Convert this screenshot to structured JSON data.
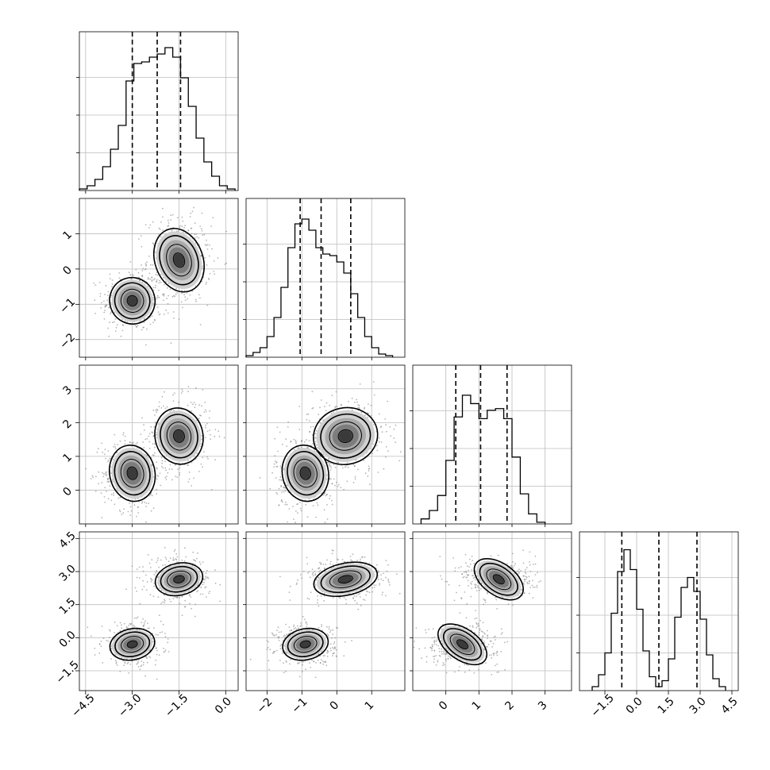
{
  "chart_data": {
    "type": "corner",
    "parameters": 4,
    "grid": true,
    "diag": [
      {
        "xlim": [
          -4.7,
          0.4
        ],
        "edges": [
          -4.7,
          -4.45,
          -4.2,
          -3.95,
          -3.7,
          -3.45,
          -3.2,
          -2.95,
          -2.7,
          -2.45,
          -2.2,
          -1.95,
          -1.7,
          -1.45,
          -1.2,
          -0.95,
          -0.7,
          -0.45,
          -0.2,
          0.05,
          0.3
        ],
        "values": [
          0.01,
          0.03,
          0.07,
          0.15,
          0.26,
          0.41,
          0.69,
          0.8,
          0.81,
          0.84,
          0.86,
          0.9,
          0.84,
          0.71,
          0.53,
          0.33,
          0.18,
          0.09,
          0.03,
          0.01
        ],
        "quantiles": [
          -3.0,
          -2.2,
          -1.45
        ],
        "ymax": 1.0
      },
      {
        "xlim": [
          -2.6,
          1.95
        ],
        "edges": [
          -2.6,
          -2.4,
          -2.2,
          -2.0,
          -1.8,
          -1.6,
          -1.4,
          -1.2,
          -1.0,
          -0.8,
          -0.6,
          -0.4,
          -0.2,
          0.0,
          0.2,
          0.4,
          0.6,
          0.8,
          1.0,
          1.2,
          1.4,
          1.6
        ],
        "values": [
          0.01,
          0.03,
          0.06,
          0.13,
          0.25,
          0.44,
          0.69,
          0.84,
          0.87,
          0.8,
          0.69,
          0.65,
          0.64,
          0.6,
          0.53,
          0.4,
          0.25,
          0.13,
          0.06,
          0.02,
          0.01
        ],
        "quantiles": [
          -1.05,
          -0.45,
          0.4
        ],
        "ymax": 1.0
      },
      {
        "xlim": [
          -1.0,
          3.8
        ],
        "edges": [
          -0.75,
          -0.5,
          -0.25,
          0.0,
          0.25,
          0.5,
          0.75,
          1.0,
          1.25,
          1.5,
          1.75,
          2.0,
          2.25,
          2.5,
          2.75,
          3.0
        ],
        "values": [
          0.03,
          0.08,
          0.17,
          0.38,
          0.64,
          0.77,
          0.72,
          0.63,
          0.68,
          0.69,
          0.63,
          0.4,
          0.18,
          0.06,
          0.01
        ],
        "quantiles": [
          0.3,
          1.05,
          1.85
        ],
        "ymax": 0.95
      },
      {
        "xlim": [
          -2.7,
          4.8
        ],
        "edges": [
          -2.1,
          -1.8,
          -1.5,
          -1.2,
          -0.9,
          -0.6,
          -0.3,
          0.0,
          0.3,
          0.6,
          0.9,
          1.2,
          1.5,
          1.8,
          2.1,
          2.4,
          2.7,
          3.0,
          3.3,
          3.6,
          3.9,
          4.2
        ],
        "values": [
          0.02,
          0.08,
          0.19,
          0.39,
          0.6,
          0.71,
          0.61,
          0.41,
          0.2,
          0.07,
          0.02,
          0.05,
          0.16,
          0.37,
          0.52,
          0.57,
          0.5,
          0.36,
          0.18,
          0.06,
          0.02
        ],
        "quantiles": [
          -0.7,
          1.05,
          2.85
        ],
        "ymax": 0.8
      }
    ],
    "modes": [
      {
        "center": [
          -3.0,
          -0.9,
          0.5,
          -0.3
        ],
        "sd": [
          0.33,
          0.3,
          0.38,
          0.32
        ]
      },
      {
        "center": [
          -1.5,
          0.25,
          1.6,
          2.65
        ],
        "sd": [
          0.35,
          0.42,
          0.38,
          0.33
        ]
      }
    ],
    "ticks": {
      "0": [
        -4.5,
        -3.0,
        -1.5,
        0.0
      ],
      "1": [
        -2,
        -1,
        0,
        1
      ],
      "2": [
        0,
        1,
        2,
        3
      ],
      "3": [
        -1.5,
        0.0,
        1.5,
        3.0,
        4.5
      ]
    },
    "tick_labels": {
      "0": [
        "−4.5",
        "−3.0",
        "−1.5",
        "0.0"
      ],
      "1": [
        "−2",
        "−1",
        "0",
        "1"
      ],
      "2": [
        "0",
        "1",
        "2",
        "3"
      ],
      "3": [
        "−1.5",
        "0.0",
        "1.5",
        "3.0",
        "4.5"
      ]
    },
    "ylim": {
      "1": [
        -2.5,
        2.0
      ],
      "2": [
        -1.0,
        3.7
      ],
      "3": [
        -2.4,
        4.8
      ]
    },
    "colors": {
      "points": "#7a7a7a",
      "contour": "#000000",
      "grid": "#bdbdbd"
    }
  }
}
